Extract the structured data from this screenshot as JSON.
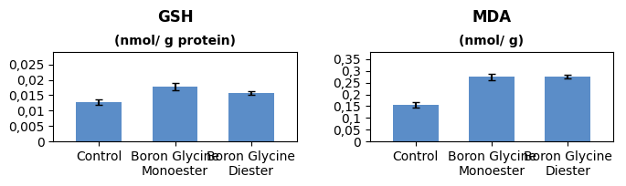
{
  "chart_data": [
    {
      "type": "bar",
      "title": "GSH",
      "subtitle": "(nmol/ g protein)",
      "categories": [
        "Control",
        "Boron Glycine\nMonoester",
        "Boron Glycine Diester"
      ],
      "values": [
        0.0127,
        0.0178,
        0.0156
      ],
      "errors": [
        0.0008,
        0.0012,
        0.0006
      ],
      "color": "#5B8DC8",
      "ylim": [
        0,
        0.029
      ],
      "yticks": [
        0,
        {
          "value": 0.005,
          "label": "0,005"
        },
        {
          "value": 0.01,
          "label": "0,01"
        },
        {
          "value": 0.015,
          "label": "0,015"
        },
        {
          "value": 0.02,
          "label": "0,02"
        },
        {
          "value": 0.025,
          "label": "0,025"
        }
      ]
    },
    {
      "type": "bar",
      "title": "MDA",
      "subtitle": "(nmol/ g)",
      "categories": [
        "Control",
        "Boron Glycine Monoester",
        "Boron Glycine Diester"
      ],
      "values": [
        0.155,
        0.275,
        0.275
      ],
      "errors": [
        0.012,
        0.013,
        0.007
      ],
      "color": "#5B8DC8",
      "ylim": [
        0,
        0.38
      ],
      "yticks": [
        0,
        {
          "value": 0.05,
          "label": "0,05"
        },
        {
          "value": 0.1,
          "label": "0,1"
        },
        {
          "value": 0.15,
          "label": "0,15"
        },
        {
          "value": 0.2,
          "label": "0,2"
        },
        {
          "value": 0.25,
          "label": "0,25"
        },
        {
          "value": 0.3,
          "label": "0,3"
        },
        {
          "value": 0.35,
          "label": "0,35"
        }
      ]
    }
  ]
}
